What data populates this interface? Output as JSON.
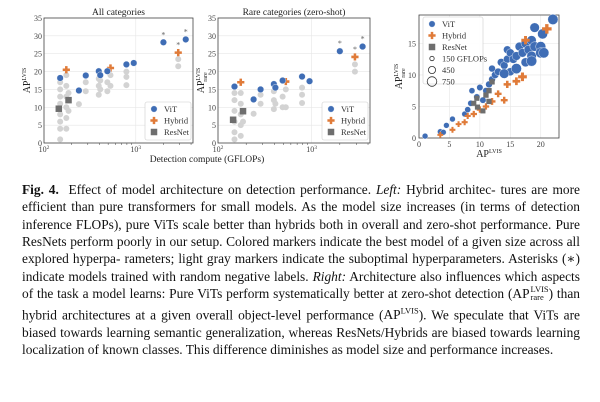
{
  "chart_data": [
    {
      "type": "scatter",
      "title": "All categories",
      "xlabel": "Detection compute (GFLOPs)",
      "ylabel": "AP^LVIS",
      "xscale": "log",
      "xlim": [
        100,
        4200
      ],
      "ylim": [
        0,
        35
      ],
      "yticks": [
        0,
        5,
        10,
        15,
        20,
        25,
        30,
        35
      ],
      "xticks": [
        "10^2",
        "10^3"
      ],
      "grid": true,
      "legend": "bottom-right",
      "series": [
        {
          "name": "ViT",
          "color": "#3f6db5",
          "marker": "circle",
          "points": [
            [
              150,
              18.2
            ],
            [
              240,
              14.7
            ],
            [
              285,
              18.9
            ],
            [
              395,
              20.1
            ],
            [
              410,
              19.0
            ],
            [
              490,
              20.1
            ],
            [
              790,
              22.0
            ],
            [
              950,
              22.4
            ],
            [
              2000,
              28.2
            ],
            [
              3500,
              29.0
            ]
          ]
        },
        {
          "name": "Hybrid",
          "color": "#e07b39",
          "marker": "plus",
          "points": [
            [
              175,
              20.5
            ],
            [
              530,
              21.0
            ],
            [
              2900,
              25.3
            ]
          ]
        },
        {
          "name": "ResNet",
          "color": "#6e6e6e",
          "marker": "square",
          "points": [
            [
              145,
              9.6
            ],
            [
              185,
              12.0
            ]
          ]
        },
        {
          "color": "#d3d3d3",
          "marker": "suboptimal",
          "points": [
            [
              150,
              1
            ],
            [
              150,
              4
            ],
            [
              150,
              6
            ],
            [
              150,
              8
            ],
            [
              150,
              11
            ],
            [
              150,
              13
            ],
            [
              150,
              15
            ],
            [
              150,
              17
            ],
            [
              175,
              4
            ],
            [
              175,
              7
            ],
            [
              175,
              10
            ],
            [
              175,
              13
            ],
            [
              175,
              16
            ],
            [
              175,
              19
            ],
            [
              185,
              9
            ],
            [
              185,
              14
            ],
            [
              240,
              10.9
            ],
            [
              285,
              14.5
            ],
            [
              285,
              17
            ],
            [
              395,
              13.5
            ],
            [
              395,
              16
            ],
            [
              395,
              18
            ],
            [
              410,
              15
            ],
            [
              410,
              17.5
            ],
            [
              490,
              14.5
            ],
            [
              490,
              17
            ],
            [
              530,
              16
            ],
            [
              530,
              19
            ],
            [
              790,
              16.2
            ],
            [
              790,
              18.5
            ],
            [
              790,
              20
            ],
            [
              2900,
              21.5
            ],
            [
              2900,
              23.5
            ]
          ]
        }
      ]
    },
    {
      "type": "scatter",
      "title": "Rare categories (zero-shot)",
      "xlabel": "Detection compute (GFLOPs)",
      "ylabel": "AP^LVIS_rare",
      "xscale": "log",
      "xlim": [
        100,
        4200
      ],
      "ylim": [
        0,
        35
      ],
      "yticks": [
        0,
        5,
        10,
        15,
        20,
        25,
        30,
        35
      ],
      "xticks": [
        "10^2",
        "10^3"
      ],
      "grid": true,
      "legend": "bottom-right",
      "series": [
        {
          "name": "ViT",
          "color": "#3f6db5",
          "marker": "circle",
          "points": [
            [
              150,
              15.8
            ],
            [
              240,
              12.2
            ],
            [
              285,
              15.0
            ],
            [
              395,
              16.5
            ],
            [
              410,
              15.5
            ],
            [
              490,
              17.5
            ],
            [
              790,
              18.6
            ],
            [
              950,
              17.3
            ],
            [
              2000,
              25.7
            ],
            [
              3500,
              27.0
            ]
          ]
        },
        {
          "name": "Hybrid",
          "color": "#e07b39",
          "marker": "plus",
          "points": [
            [
              175,
              17.0
            ],
            [
              530,
              17.2
            ],
            [
              2900,
              24.1
            ]
          ]
        },
        {
          "name": "ResNet",
          "color": "#6e6e6e",
          "marker": "square",
          "points": [
            [
              145,
              6.5
            ],
            [
              185,
              8.9
            ]
          ]
        },
        {
          "color": "#d3d3d3",
          "marker": "suboptimal",
          "points": [
            [
              150,
              1
            ],
            [
              150,
              3
            ],
            [
              150,
              6
            ],
            [
              150,
              9
            ],
            [
              150,
              12
            ],
            [
              150,
              14
            ],
            [
              175,
              2
            ],
            [
              175,
              5
            ],
            [
              175,
              8
            ],
            [
              175,
              11
            ],
            [
              175,
              14
            ],
            [
              185,
              6
            ],
            [
              240,
              8.2
            ],
            [
              285,
              11
            ],
            [
              285,
              13.5
            ],
            [
              395,
              9.5
            ],
            [
              395,
              12
            ],
            [
              395,
              14.5
            ],
            [
              410,
              11
            ],
            [
              490,
              10
            ],
            [
              490,
              13
            ],
            [
              530,
              10
            ],
            [
              530,
              15
            ],
            [
              790,
              11.2
            ],
            [
              790,
              13.5
            ],
            [
              790,
              15.5
            ],
            [
              2900,
              20
            ],
            [
              2900,
              22
            ]
          ]
        }
      ]
    },
    {
      "type": "scatter",
      "xlabel": "AP^LVIS",
      "ylabel": "AP^LVIS_rare",
      "xlim": [
        0,
        23
      ],
      "ylim": [
        0,
        19.5
      ],
      "xticks": [
        0,
        5,
        10,
        15,
        20
      ],
      "yticks": [
        0,
        5,
        10,
        15
      ],
      "grid": true,
      "legend": "top-left",
      "size_legend": [
        "150 GFLOPs",
        "450",
        "750"
      ],
      "series": [
        {
          "name": "ViT",
          "color": "#3f6db5",
          "marker": "circle",
          "points": [
            [
              1,
              0.3,
              100
            ],
            [
              3.5,
              1,
              100
            ],
            [
              4,
              0.9,
              100
            ],
            [
              4.5,
              2,
              100
            ],
            [
              5.5,
              3,
              100
            ],
            [
              7.5,
              3.8,
              100
            ],
            [
              8,
              4.5,
              120
            ],
            [
              8.5,
              5.5,
              120
            ],
            [
              8.7,
              7.5,
              120
            ],
            [
              9.5,
              6.5,
              150
            ],
            [
              10,
              8,
              150
            ],
            [
              10.5,
              6,
              150
            ],
            [
              11,
              7.5,
              150
            ],
            [
              11.5,
              8.5,
              200
            ],
            [
              12,
              9.3,
              200
            ],
            [
              12.5,
              10,
              250
            ],
            [
              12,
              11,
              200
            ],
            [
              13,
              10.5,
              250
            ],
            [
              13.5,
              12,
              300
            ],
            [
              14,
              11.5,
              300
            ],
            [
              14.5,
              12.5,
              300
            ],
            [
              15,
              10.5,
              350
            ],
            [
              14.5,
              14,
              300
            ],
            [
              15,
              13.5,
              350
            ],
            [
              15.5,
              12.5,
              400
            ],
            [
              16,
              13,
              450
            ],
            [
              16.5,
              14.5,
              450
            ],
            [
              17,
              13.5,
              450
            ],
            [
              17.5,
              15,
              500
            ],
            [
              17.5,
              12,
              500
            ],
            [
              18,
              14,
              500
            ],
            [
              18.5,
              13,
              600
            ],
            [
              18.5,
              15.5,
              550
            ],
            [
              19,
              14.5,
              600
            ],
            [
              19,
              17.5,
              600
            ],
            [
              20,
              14.5,
              700
            ],
            [
              20,
              13.5,
              750
            ],
            [
              20.5,
              13.5,
              750
            ],
            [
              16,
              11,
              750
            ],
            [
              14,
              10.2,
              600
            ],
            [
              18.5,
              12.2,
              750
            ],
            [
              20.3,
              16.5,
              700
            ],
            [
              22,
              18.8,
              750
            ]
          ]
        },
        {
          "name": "Hybrid",
          "color": "#e07b39",
          "marker": "plus",
          "points": [
            [
              3.5,
              0.5,
              100
            ],
            [
              5.5,
              1.3,
              100
            ],
            [
              6.5,
              2.2,
              100
            ],
            [
              7.5,
              2.5,
              120
            ],
            [
              8,
              3.5,
              120
            ],
            [
              9,
              3.8,
              150
            ],
            [
              10,
              4.5,
              150
            ],
            [
              11,
              5,
              150
            ],
            [
              12,
              5.8,
              200
            ],
            [
              13,
              7,
              200
            ],
            [
              14,
              6,
              200
            ],
            [
              14.5,
              8.5,
              250
            ],
            [
              16,
              9,
              300
            ],
            [
              17,
              9.7,
              450
            ],
            [
              17.5,
              15.5,
              400
            ],
            [
              21,
              17.3,
              600
            ]
          ]
        },
        {
          "name": "ResNet",
          "color": "#6e6e6e",
          "marker": "square",
          "points": [
            [
              9,
              5.5,
              150
            ],
            [
              9.5,
              6.3,
              150
            ],
            [
              9.6,
              4.9,
              150
            ],
            [
              10.5,
              4.3,
              150
            ],
            [
              11,
              6.8,
              180
            ],
            [
              11.5,
              7.5,
              180
            ],
            [
              11.5,
              5.8,
              180
            ],
            [
              12,
              8.9,
              180
            ]
          ]
        }
      ]
    }
  ],
  "caption": {
    "fig_label": "Fig. 4.",
    "t1": "Effect of model architecture on detection performance.",
    "left": "Left:",
    "t2": "Hybrid architec- tures are more efficient than pure transformers for small models. As the model size increases (in terms of detection inference FLOPs), pure ViTs scale better than hybrids both in overall and zero-shot performance. Pure ResNets perform poorly in our setup. Colored markers indicate the best model of a given size across all explored hyperpa- rameters; light gray markers indicate the suboptimal hyperparameters. Asterisks (∗) indicate models trained with random negative labels.",
    "right": "Right:",
    "t3": "Architecture also influences which aspects of the task a model learns: Pure ViTs perform systematically better at zero-shot detection (",
    "ap": "AP",
    "lvis": "LVIS",
    "rare": "rare",
    "t4": ") than hybrid architectures at a given overall object-level performance (",
    "t5": "). We speculate that ViTs are biased towards learning semantic generalization, whereas ResNets/Hybrids are biased towards learning localization of known classes. This difference diminishes as model size and performance increases."
  }
}
